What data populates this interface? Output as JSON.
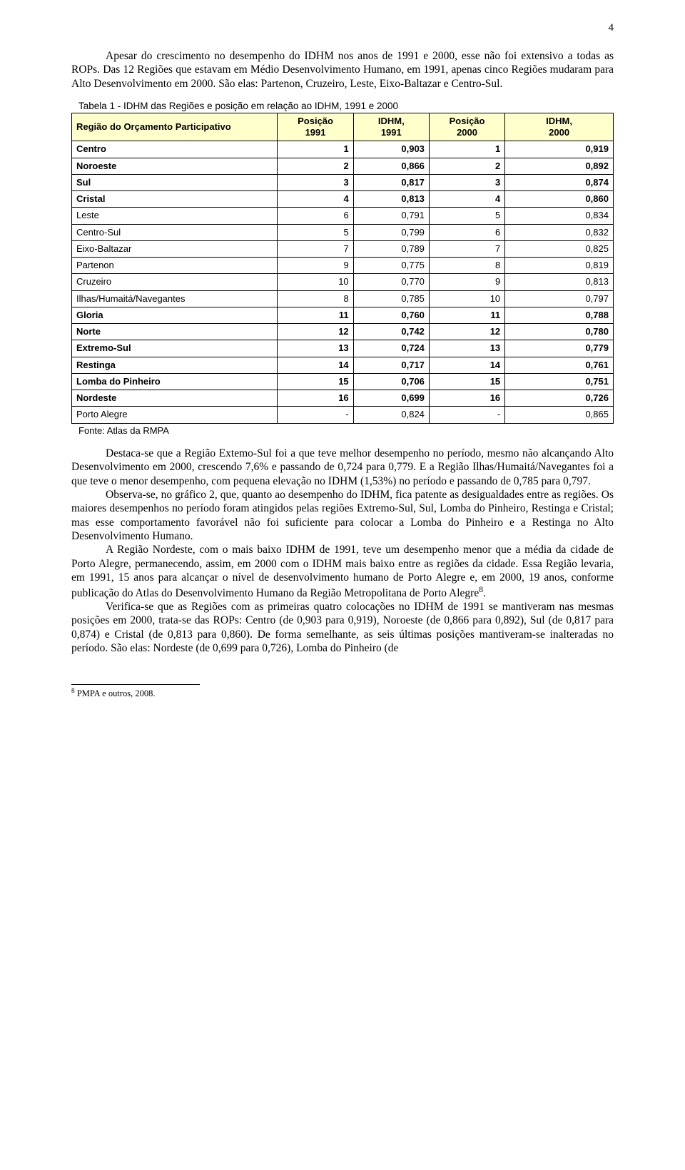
{
  "page_number": "4",
  "intro": {
    "p1": "Apesar do crescimento no desempenho do IDHM nos anos de 1991 e 2000, esse não foi extensivo a todas as ROPs. Das 12 Regiões que estavam em Médio Desenvolvimento Humano, em 1991, apenas cinco Regiões mudaram para Alto Desenvolvimento em 2000. São elas: Partenon, Cruzeiro, Leste, Eixo-Baltazar e Centro-Sul."
  },
  "table": {
    "caption": "Tabela 1 -  IDHM das Regiões e posição em relação ao IDHM, 1991 e 2000",
    "header_bg": "#ffffcc",
    "columns": [
      "Região do Orçamento Participativo",
      "Posição 1991",
      "IDHM, 1991",
      "Posição 2000",
      "IDHM, 2000"
    ],
    "col_html": [
      "Região do Orçamento Participativo",
      "Posição<br>1991",
      "IDHM,<br>1991",
      "Posição<br>2000",
      "IDHM,<br>2000"
    ],
    "rows": [
      {
        "region": "Centro",
        "p91": "1",
        "i91": "0,903",
        "p00": "1",
        "i00": "0,919",
        "bold": true
      },
      {
        "region": "Noroeste",
        "p91": "2",
        "i91": "0,866",
        "p00": "2",
        "i00": "0,892",
        "bold": true
      },
      {
        "region": "Sul",
        "p91": "3",
        "i91": "0,817",
        "p00": "3",
        "i00": "0,874",
        "bold": true
      },
      {
        "region": "Cristal",
        "p91": "4",
        "i91": "0,813",
        "p00": "4",
        "i00": "0,860",
        "bold": true
      },
      {
        "region": "Leste",
        "p91": "6",
        "i91": "0,791",
        "p00": "5",
        "i00": "0,834",
        "bold": false
      },
      {
        "region": "Centro-Sul",
        "p91": "5",
        "i91": "0,799",
        "p00": "6",
        "i00": "0,832",
        "bold": false
      },
      {
        "region": "Eixo-Baltazar",
        "p91": "7",
        "i91": "0,789",
        "p00": "7",
        "i00": "0,825",
        "bold": false
      },
      {
        "region": "Partenon",
        "p91": "9",
        "i91": "0,775",
        "p00": "8",
        "i00": "0,819",
        "bold": false
      },
      {
        "region": "Cruzeiro",
        "p91": "10",
        "i91": "0,770",
        "p00": "9",
        "i00": "0,813",
        "bold": false
      },
      {
        "region": "Ilhas/Humaitá/Navegantes",
        "p91": "8",
        "i91": "0,785",
        "p00": "10",
        "i00": "0,797",
        "bold": false
      },
      {
        "region": "Gloria",
        "p91": "11",
        "i91": "0,760",
        "p00": "11",
        "i00": "0,788",
        "bold": true
      },
      {
        "region": "Norte",
        "p91": "12",
        "i91": "0,742",
        "p00": "12",
        "i00": "0,780",
        "bold": true
      },
      {
        "region": "Extremo-Sul",
        "p91": "13",
        "i91": "0,724",
        "p00": "13",
        "i00": "0,779",
        "bold": true
      },
      {
        "region": "Restinga",
        "p91": "14",
        "i91": "0,717",
        "p00": "14",
        "i00": "0,761",
        "bold": true
      },
      {
        "region": "Lomba do Pinheiro",
        "p91": "15",
        "i91": "0,706",
        "p00": "15",
        "i00": "0,751",
        "bold": true
      },
      {
        "region": "Nordeste",
        "p91": "16",
        "i91": "0,699",
        "p00": "16",
        "i00": "0,726",
        "bold": true
      },
      {
        "region": "Porto Alegre",
        "p91": "-",
        "i91": "0,824",
        "p00": "-",
        "i00": "0,865",
        "bold": false
      }
    ],
    "col_widths": [
      "38%",
      "14%",
      "14%",
      "14%",
      "20%"
    ],
    "source": "Fonte: Atlas da RMPA"
  },
  "body": {
    "p2": "Destaca-se que a Região Extemo-Sul foi a que teve melhor desempenho no período, mesmo não alcançando Alto Desenvolvimento em 2000, crescendo 7,6%  e passando de 0,724 para 0,779. E a Região Ilhas/Humaitá/Navegantes foi a que teve o menor desempenho, com pequena elevação no IDHM (1,53%) no período e passando de 0,785 para 0,797.",
    "p3": "Observa-se, no gráfico 2,  que, quanto ao desempenho do IDHM, fica patente as desigualdades entre as regiões. Os maiores desempenhos no período foram atingidos pelas regiões Extremo-Sul, Sul, Lomba do Pinheiro, Restinga e Cristal; mas esse comportamento favorável não foi suficiente para colocar a Lomba do Pinheiro e a Restinga no Alto Desenvolvimento Humano.",
    "p4_pre": "A Região Nordeste, com o mais baixo IDHM de 1991, teve um desempenho menor que a média da cidade de Porto Alegre, permanecendo, assim, em 2000 com o IDHM mais baixo entre as regiões da cidade. Essa Região levaria, em 1991, 15 anos para alcançar o nível de desenvolvimento humano de Porto Alegre e, em 2000, 19 anos, conforme publicação do Atlas do Desenvolvimento Humano da Região Metropolitana de Porto Alegre",
    "p4_sup": "8",
    "p4_post": ".",
    "p5": "Verifica-se que as Regiões com as primeiras quatro colocações no IDHM de 1991 se mantiveram nas mesmas posições em 2000, trata-se das ROPs: Centro (de 0,903 para 0,919), Noroeste (de 0,866 para 0,892), Sul (de 0,817 para 0,874) e Cristal (de 0,813 para 0,860). De forma semelhante, as seis últimas posições mantiveram-se inalteradas no período. São elas: Nordeste (de 0,699 para 0,726), Lomba do Pinheiro (de"
  },
  "footnote": {
    "marker": "8",
    "text": " PMPA e outros, 2008."
  }
}
